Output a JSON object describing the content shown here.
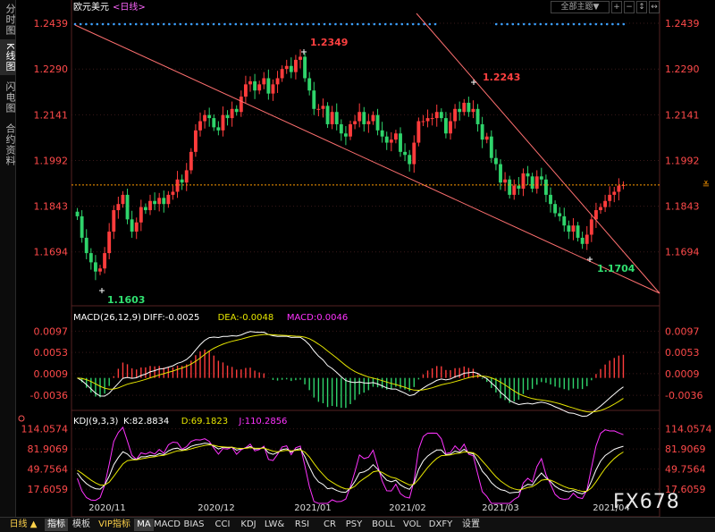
{
  "sidebar": {
    "tabs": [
      {
        "label": "分时图",
        "active": false
      },
      {
        "label": "K线图",
        "active": true
      },
      {
        "label": "闪电图",
        "active": false
      },
      {
        "label": "合约资料",
        "active": false
      }
    ]
  },
  "header": {
    "symbol": "欧元美元",
    "period": "<日线>",
    "view_select": "全部主题▼"
  },
  "chart_data": [
    {
      "type": "candlestick",
      "title": "欧元美元 <日线>",
      "y_ticks": [
        1.2439,
        1.229,
        1.2141,
        1.1992,
        1.1843,
        1.1694
      ],
      "ylim": [
        1.153,
        1.2445
      ],
      "x_ticks": [
        "2020/11",
        "2020/12",
        "2021/01",
        "2021/02",
        "2021/03",
        "2021/04"
      ],
      "last_price": 1.1912,
      "annotations": [
        {
          "label": "1.2349",
          "kind": "high"
        },
        {
          "label": "1.2243",
          "kind": "high"
        },
        {
          "label": "1.1603",
          "kind": "low"
        },
        {
          "label": "1.1704",
          "kind": "low"
        }
      ],
      "series": [
        {
          "name": "close",
          "values": [
            1.181,
            1.174,
            1.169,
            1.166,
            1.163,
            1.164,
            1.169,
            1.176,
            1.183,
            1.185,
            1.188,
            1.18,
            1.176,
            1.179,
            1.184,
            1.183,
            1.186,
            1.185,
            1.187,
            1.185,
            1.188,
            1.189,
            1.193,
            1.192,
            1.196,
            1.202,
            1.209,
            1.212,
            1.214,
            1.213,
            1.21,
            1.209,
            1.214,
            1.213,
            1.216,
            1.215,
            1.22,
            1.224,
            1.225,
            1.222,
            1.224,
            1.226,
            1.221,
            1.224,
            1.226,
            1.229,
            1.23,
            1.228,
            1.232,
            1.233,
            1.226,
            1.222,
            1.216,
            1.216,
            1.217,
            1.211,
            1.215,
            1.211,
            1.208,
            1.207,
            1.211,
            1.212,
            1.215,
            1.211,
            1.212,
            1.214,
            1.209,
            1.207,
            1.205,
            1.206,
            1.208,
            1.202,
            1.201,
            1.198,
            1.205,
            1.212,
            1.212,
            1.213,
            1.213,
            1.215,
            1.213,
            1.208,
            1.212,
            1.216,
            1.215,
            1.218,
            1.215,
            1.216,
            1.211,
            1.206,
            1.207,
            1.2,
            1.198,
            1.192,
            1.193,
            1.188,
            1.191,
            1.19,
            1.195,
            1.194,
            1.19,
            1.194,
            1.193,
            1.188,
            1.185,
            1.182,
            1.181,
            1.178,
            1.176,
            1.178,
            1.174,
            1.172,
            1.175,
            1.18,
            1.183,
            1.184,
            1.186,
            1.188,
            1.189,
            1.191,
            1.1912
          ]
        },
        {
          "name": "up_trendline",
          "values": []
        },
        {
          "name": "down_trendline",
          "values": []
        }
      ]
    },
    {
      "type": "line",
      "title": "MACD(26,12,9)",
      "params": "MACD(26,12,9)",
      "readouts": [
        {
          "label": "DIFF:",
          "value": "-0.0025",
          "color": "#ffffff"
        },
        {
          "label": "DEA:",
          "value": "-0.0048",
          "color": "#e6e600"
        },
        {
          "label": "MACD:",
          "value": "0.0046",
          "color": "#ff33ff"
        }
      ],
      "y_ticks": [
        "0.0097",
        "0.0053",
        "0.0009",
        "-0.0036"
      ]
    },
    {
      "type": "line",
      "title": "KDJ(9,3,3)",
      "params": "KDJ(9,3,3)",
      "readouts": [
        {
          "label": "K:",
          "value": "82.8834",
          "color": "#ffffff"
        },
        {
          "label": "D:",
          "value": "69.1823",
          "color": "#e6e600"
        },
        {
          "label": "J:",
          "value": "110.2856",
          "color": "#ff33ff"
        }
      ],
      "y_ticks": [
        "114.0574",
        "81.9069",
        "49.7564",
        "17.6059"
      ]
    }
  ],
  "colors": {
    "up": "#ff3c3c",
    "down": "#2fd46b",
    "bg": "#000000",
    "grid": "#3a1a1a",
    "axis_text": "#ff4a4a",
    "trendline": "#ff7070",
    "last_price": "#ff9900",
    "dots": "#3aa0ff",
    "diff": "#ffffff",
    "dea": "#e6e600",
    "macd": "#ff33ff"
  },
  "bottombar": {
    "items": [
      {
        "label": "日线 ▲",
        "sel": false,
        "color": "#ffd24a"
      },
      {
        "label": "指标",
        "sel": true,
        "color": "#ffffff"
      },
      {
        "label": "模板",
        "sel": false,
        "color": "#dddddd"
      },
      {
        "label": "VIP指标",
        "sel": false,
        "color": "#ffd24a"
      },
      {
        "label": "MA",
        "sel": true,
        "color": "#ffffff"
      },
      {
        "label": "MACD",
        "sel": false,
        "color": "#dddddd"
      },
      {
        "label": "BIAS",
        "sel": false,
        "color": "#dddddd"
      },
      {
        "label": "CCI",
        "sel": false,
        "color": "#dddddd"
      },
      {
        "label": "KDJ",
        "sel": false,
        "color": "#dddddd"
      },
      {
        "label": "LW&",
        "sel": false,
        "color": "#dddddd"
      },
      {
        "label": "RSI",
        "sel": false,
        "color": "#dddddd"
      },
      {
        "label": "CR",
        "sel": false,
        "color": "#dddddd"
      },
      {
        "label": "PSY",
        "sel": false,
        "color": "#dddddd"
      },
      {
        "label": "BOLL",
        "sel": false,
        "color": "#dddddd"
      },
      {
        "label": "VOL",
        "sel": false,
        "color": "#dddddd"
      },
      {
        "label": "DXFY",
        "sel": false,
        "color": "#dddddd"
      },
      {
        "label": "设置",
        "sel": false,
        "color": "#dddddd"
      }
    ]
  },
  "watermark": "FX678"
}
